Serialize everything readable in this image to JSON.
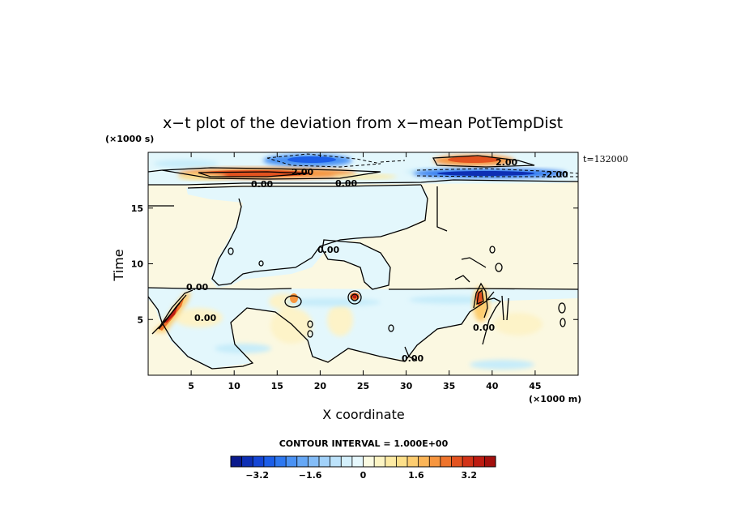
{
  "chart_data": {
    "type": "heatmap",
    "title": "x−t plot of the deviation from x−mean PotTempDist",
    "xlabel": "X coordinate",
    "ylabel": "Time",
    "x_unit": "(×1000 m)",
    "y_unit": "(×1000 s)",
    "time_stamp": "t=132000",
    "xlim": [
      0,
      50
    ],
    "ylim": [
      0,
      20
    ],
    "x_ticks": [
      5,
      10,
      15,
      20,
      25,
      30,
      35,
      40,
      45
    ],
    "y_ticks": [
      5,
      10,
      15
    ],
    "contour_interval_text": "CONTOUR INTERVAL = 1.000E+00",
    "contour_labels": [
      "0.00",
      "2.00",
      "-2.00"
    ],
    "colorbar": {
      "range": [
        -4,
        4
      ],
      "step": 0.4,
      "tick_values": [
        -3.2,
        -1.6,
        0,
        1.6,
        3.2
      ],
      "tick_labels": [
        "−3.2",
        "−1.6",
        "0",
        "1.6",
        "3.2"
      ],
      "colors": [
        "#0a1a8c",
        "#0d2fb4",
        "#1446d6",
        "#1c5ee8",
        "#2e78f0",
        "#4a92f4",
        "#66a8f6",
        "#84bdf8",
        "#a2d2fa",
        "#bde3fb",
        "#d4f0fc",
        "#e6f8fd",
        "#fbfbe2",
        "#fdf5c4",
        "#fdeba4",
        "#fde08a",
        "#fdcd70",
        "#fbb558",
        "#f7963f",
        "#ef742c",
        "#e35320",
        "#d23318",
        "#bd1c12",
        "#a4100e"
      ]
    },
    "features": [
      {
        "kind": "warm",
        "x": [
          8,
          17
        ],
        "t": [
          17.9,
          18.3
        ],
        "peak": 3.0
      },
      {
        "kind": "cool",
        "x": [
          16,
          22
        ],
        "t": [
          18.8,
          19.7
        ],
        "peak": -2.5
      },
      {
        "kind": "warm",
        "x": [
          34,
          40
        ],
        "t": [
          18.8,
          19.6
        ],
        "peak": 3.0
      },
      {
        "kind": "cool",
        "x": [
          33,
          45
        ],
        "t": [
          17.8,
          18.4
        ],
        "peak": -3.5
      },
      {
        "kind": "warm",
        "x": [
          1,
          4
        ],
        "t": [
          4.0,
          7.5
        ],
        "peak": 3.0
      },
      {
        "kind": "warm",
        "x": [
          37.5,
          39.5
        ],
        "t": [
          5.5,
          7.5
        ],
        "peak": 2.0
      }
    ]
  }
}
